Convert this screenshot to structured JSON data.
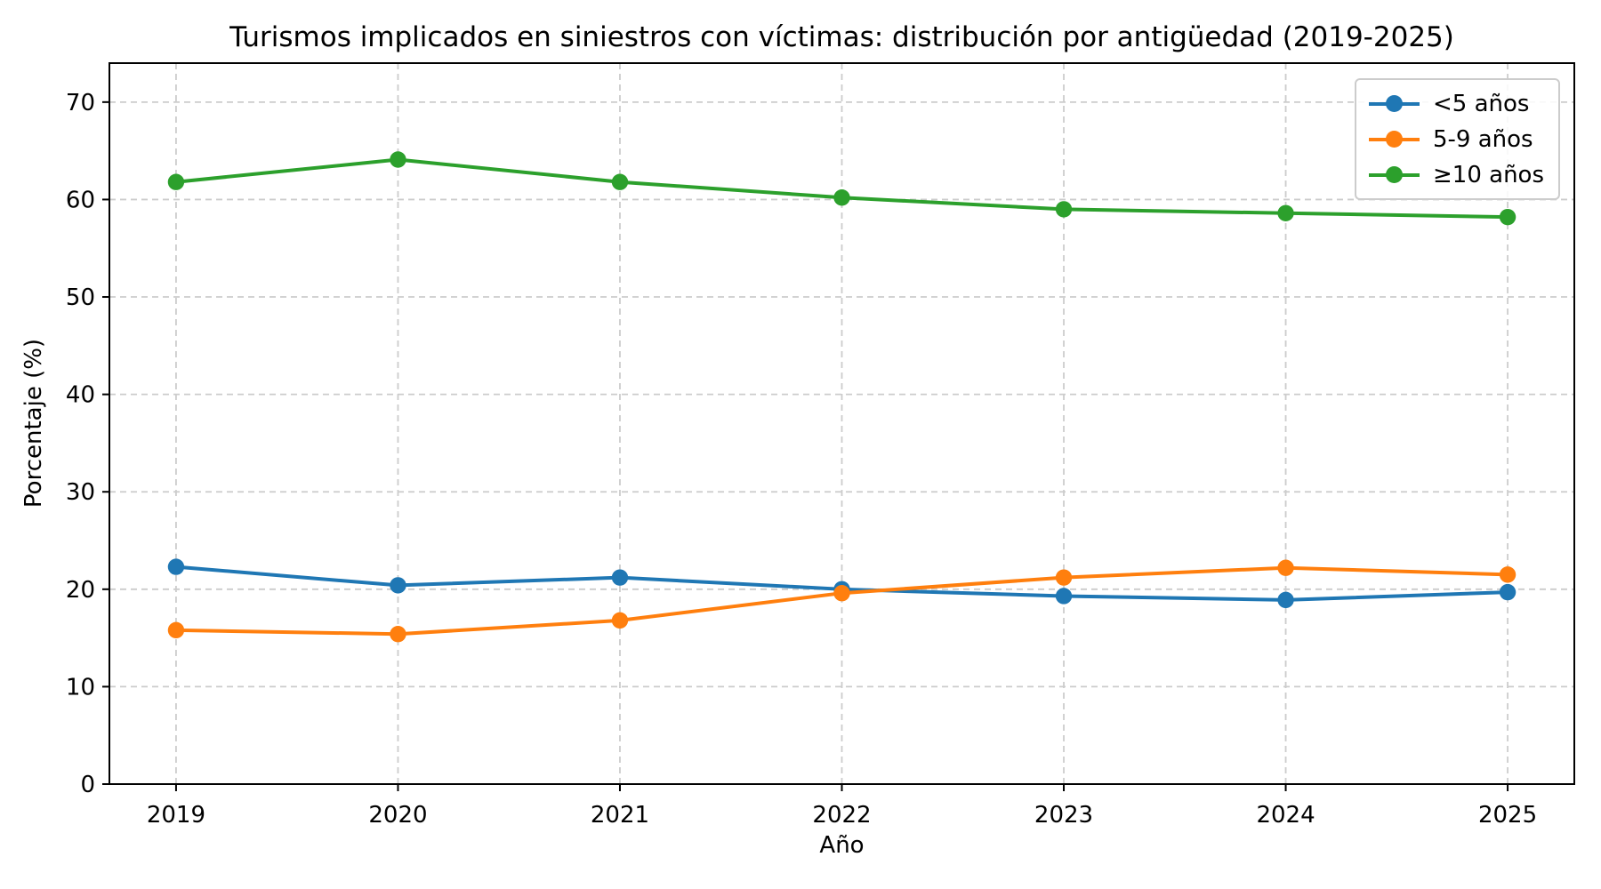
{
  "figure": {
    "title": "Turismos implicados en siniestros con víctimas: distribución por antigüedad (2019-2025)",
    "xlabel": "Año",
    "ylabel": "Porcentaje (%)"
  },
  "chart_data": {
    "type": "line",
    "title": "Turismos implicados en siniestros con víctimas: distribución por antigüedad (2019-2025)",
    "xlabel": "Año",
    "ylabel": "Porcentaje (%)",
    "categories": [
      "2019",
      "2020",
      "2021",
      "2022",
      "2023",
      "2024",
      "2025"
    ],
    "series": [
      {
        "name": "<5 años",
        "color": "#1f77b4",
        "marker": "circle",
        "values": [
          22.3,
          20.4,
          21.2,
          20.0,
          19.3,
          18.9,
          19.7
        ]
      },
      {
        "name": "5-9 años",
        "color": "#ff7f0e",
        "marker": "circle",
        "values": [
          15.8,
          15.4,
          16.8,
          19.6,
          21.2,
          22.2,
          21.5
        ]
      },
      {
        "name": "≥10 años",
        "color": "#2ca02c",
        "marker": "circle",
        "values": [
          61.8,
          64.1,
          61.8,
          60.2,
          59.0,
          58.6,
          58.2
        ]
      }
    ],
    "ylim": [
      0,
      74
    ],
    "yticks": [
      0,
      10,
      20,
      30,
      40,
      50,
      60,
      70
    ],
    "grid": true,
    "grid_style": "dashed",
    "legend_position": "upper right",
    "colors": {
      "grid": "#cccccc",
      "axis": "#000000",
      "text": "#000000",
      "legend_border": "#cccccc",
      "background": "#ffffff"
    }
  }
}
